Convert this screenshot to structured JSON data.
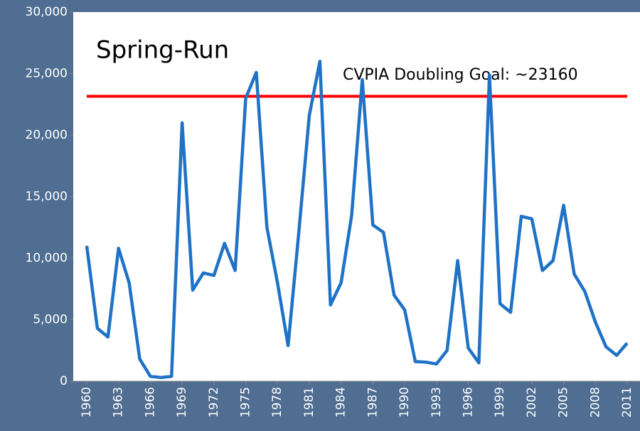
{
  "chart_data": {
    "type": "line",
    "title": "Spring-Run",
    "x": [
      1960,
      1961,
      1962,
      1963,
      1964,
      1965,
      1966,
      1967,
      1968,
      1969,
      1970,
      1971,
      1972,
      1973,
      1974,
      1975,
      1976,
      1977,
      1978,
      1979,
      1980,
      1981,
      1982,
      1983,
      1984,
      1985,
      1986,
      1987,
      1988,
      1989,
      1990,
      1991,
      1992,
      1993,
      1994,
      1995,
      1996,
      1997,
      1998,
      1999,
      2000,
      2001,
      2002,
      2003,
      2004,
      2005,
      2006,
      2007,
      2008,
      2009,
      2010,
      2011
    ],
    "values": [
      11000,
      4300,
      3600,
      10800,
      8000,
      1800,
      400,
      300,
      400,
      21000,
      7400,
      8800,
      8600,
      11200,
      9000,
      23000,
      25100,
      12500,
      8000,
      2900,
      12000,
      21600,
      26000,
      6200,
      8000,
      13500,
      24500,
      12700,
      12100,
      7000,
      5800,
      1600,
      1550,
      1400,
      2500,
      9800,
      2700,
      1500,
      24900,
      6300,
      5600,
      13400,
      13200,
      9000,
      9800,
      14300,
      8700,
      7300,
      4800,
      2800,
      2100,
      3100
    ],
    "color": "#1f72c6",
    "xlim": [
      1960,
      2011
    ],
    "xticks": [
      1960,
      1963,
      1966,
      1969,
      1972,
      1975,
      1978,
      1981,
      1984,
      1987,
      1990,
      1993,
      1996,
      1999,
      2002,
      2005,
      2008,
      2011
    ],
    "ylim": [
      0,
      30000
    ],
    "yticks": [
      0,
      {
        "value": 5000,
        "label": "5,000"
      },
      {
        "value": 10000,
        "label": "10,000"
      },
      {
        "value": 15000,
        "label": "15,000"
      },
      {
        "value": 20000,
        "label": "20,000"
      },
      {
        "value": 25000,
        "label": "25,000"
      },
      {
        "value": 30000,
        "label": "30,000"
      }
    ],
    "reference_line": {
      "value": 23160,
      "label": "CVPIA Doubling Goal: ~23160",
      "color": "#ff0000"
    }
  }
}
